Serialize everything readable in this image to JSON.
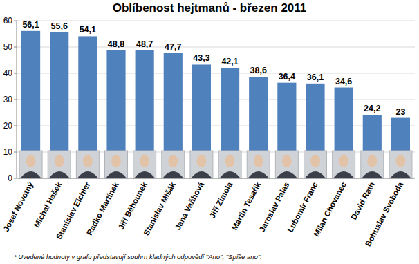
{
  "chart_data": {
    "type": "bar",
    "title": "Oblíbenost hejtmanů - březen 2011",
    "categories": [
      "Josef Novotný",
      "Michal Hašek",
      "Stanislav Eichler",
      "Radko Martínek",
      "Jiří Běhounek",
      "Stanislav Mišák",
      "Jana Vaňhová",
      "Jiří Zimola",
      "Martin Tesařík",
      "Jaroslav Palas",
      "Lubomír Franc",
      "Milan Chovanec",
      "David Rath",
      "Bohuslav Svoboda"
    ],
    "values": [
      56.1,
      55.6,
      54.1,
      48.8,
      48.7,
      47.7,
      43.3,
      42.1,
      38.6,
      36.4,
      36.1,
      34.6,
      24.2,
      23
    ],
    "value_labels": [
      "56,1",
      "55,6",
      "54,1",
      "48,8",
      "48,7",
      "47,7",
      "43,3",
      "42,1",
      "38,6",
      "36,4",
      "36,1",
      "34,6",
      "24,2",
      "23"
    ],
    "color": "#4f81bd",
    "ylim": [
      0,
      60
    ],
    "yticks": [
      0,
      10,
      20,
      30,
      40,
      50,
      60
    ],
    "grid": true,
    "data_labels": true,
    "footnote": "* Uvedené hodnoty v grafu představují souhrn kladných odpovědí \"Ano\", \"Spíše ano\"."
  }
}
